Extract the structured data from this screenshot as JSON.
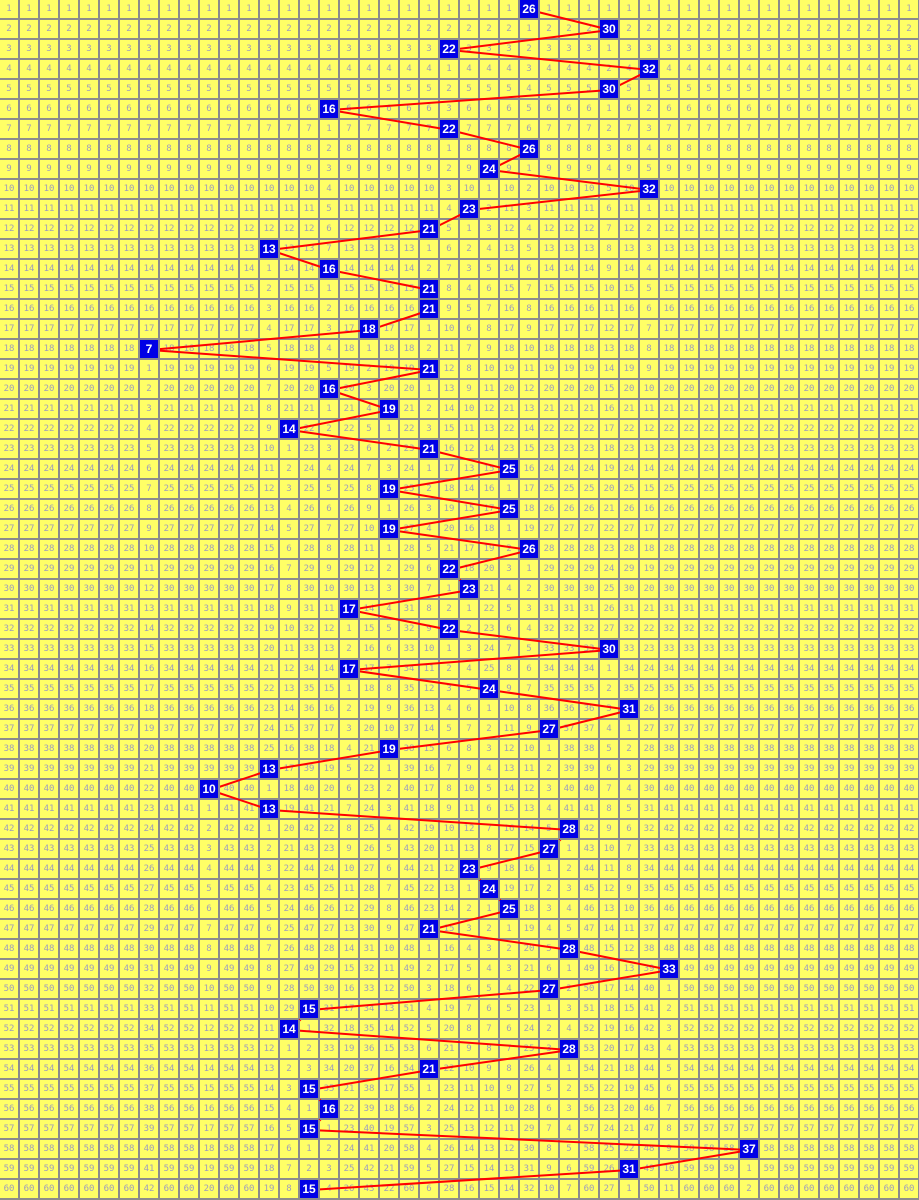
{
  "chart_data": {
    "type": "line",
    "description_kind": "trend grid",
    "columns": [
      0,
      45
    ],
    "rows": 60,
    "hits": [
      26,
      30,
      22,
      32,
      30,
      16,
      22,
      26,
      24,
      32,
      23,
      21,
      13,
      16,
      21,
      21,
      18,
      7,
      21,
      16,
      19,
      14,
      21,
      25,
      19,
      25,
      19,
      26,
      22,
      23,
      17,
      22,
      30,
      17,
      24,
      31,
      27,
      19,
      13,
      10,
      13,
      28,
      27,
      23,
      24,
      25,
      21,
      28,
      33,
      27,
      15,
      14,
      28,
      21,
      15,
      16,
      15,
      37,
      31,
      15
    ],
    "colors": {
      "cell_bg": "#ffff66",
      "grid": "#8c8c8c",
      "cell_text": "#9d9dbd",
      "hit_bg": "#0000e6",
      "hit_text": "#ffffff",
      "line": "#ff0000"
    }
  }
}
